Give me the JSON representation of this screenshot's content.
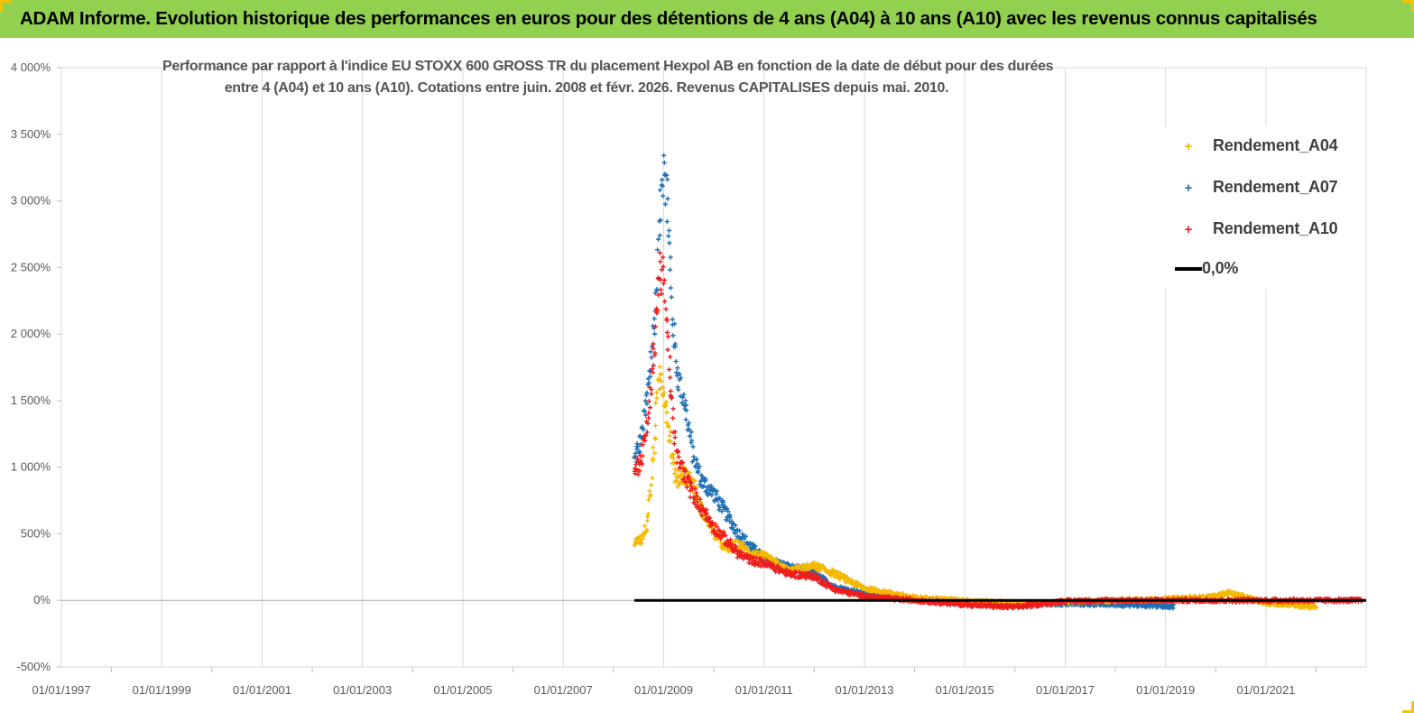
{
  "header": {
    "banner": "ADAM Informe. Evolution historique des performances en euros pour des détentions de 4 ans (A04) à 10 ans (A10) avec les revenus connus capitalisés"
  },
  "chart_data": {
    "type": "scatter",
    "title_lines": [
      "Performance par rapport à l'indice EU STOXX 600 GROSS TR  du placement Hexpol AB en fonction de la date de début pour des durées",
      "entre 4 (A04) et 10 ans (A10). Cotations entre juin. 2008 et févr. 2026. Revenus CAPITALISES depuis mai. 2010."
    ],
    "xlabel": "",
    "ylabel": "",
    "xlim": [
      "1997-01-01",
      "2022-12-31"
    ],
    "ylim": [
      -500,
      4000
    ],
    "y_ticks": [
      -500,
      0,
      500,
      1000,
      1500,
      2000,
      2500,
      3000,
      3500,
      4000
    ],
    "y_tick_labels": [
      "-500%",
      "0%",
      "500%",
      "1 000%",
      "1 500%",
      "2 000%",
      "2 500%",
      "3 000%",
      "3 500%",
      "4 000%"
    ],
    "x_tick_labels": [
      "01/01/1997",
      "01/01/1999",
      "01/01/2001",
      "01/01/2003",
      "01/01/2005",
      "01/01/2007",
      "01/01/2009",
      "01/01/2011",
      "01/01/2013",
      "01/01/2015",
      "01/01/2017",
      "01/01/2019",
      "01/01/2021"
    ],
    "x_tick_dates": [
      "1997-01-01",
      "1999-01-01",
      "2001-01-01",
      "2003-01-01",
      "2005-01-01",
      "2007-01-01",
      "2009-01-01",
      "2011-01-01",
      "2013-01-01",
      "2015-01-01",
      "2017-01-01",
      "2019-01-01",
      "2021-01-01"
    ],
    "grid": "vertical",
    "legend_position": "top-right",
    "series": [
      {
        "name": "Rendement_A04",
        "color": "#f5b800",
        "marker": "plus",
        "points": [
          [
            "2008-06-01",
            420
          ],
          [
            "2008-07-01",
            450
          ],
          [
            "2008-08-01",
            470
          ],
          [
            "2008-09-01",
            560
          ],
          [
            "2008-10-01",
            850
          ],
          [
            "2008-11-01",
            1300
          ],
          [
            "2008-12-01",
            1700
          ],
          [
            "2009-01-01",
            1600
          ],
          [
            "2009-02-01",
            1350
          ],
          [
            "2009-03-01",
            1100
          ],
          [
            "2009-04-01",
            900
          ],
          [
            "2009-06-01",
            950
          ],
          [
            "2009-08-01",
            880
          ],
          [
            "2009-10-01",
            680
          ],
          [
            "2010-01-01",
            520
          ],
          [
            "2010-04-01",
            380
          ],
          [
            "2010-07-01",
            420
          ],
          [
            "2010-10-01",
            350
          ],
          [
            "2011-01-01",
            330
          ],
          [
            "2011-07-01",
            220
          ],
          [
            "2012-01-01",
            260
          ],
          [
            "2012-06-01",
            200
          ],
          [
            "2013-01-01",
            90
          ],
          [
            "2014-01-01",
            20
          ],
          [
            "2015-01-01",
            0
          ],
          [
            "2016-01-01",
            -20
          ],
          [
            "2016-06-01",
            -25
          ],
          [
            "2017-01-01",
            -10
          ],
          [
            "2018-01-01",
            0
          ],
          [
            "2019-01-01",
            10
          ],
          [
            "2020-01-01",
            30
          ],
          [
            "2020-04-01",
            60
          ],
          [
            "2021-01-01",
            -20
          ],
          [
            "2021-06-01",
            -30
          ],
          [
            "2021-10-01",
            -40
          ],
          [
            "2022-01-01",
            -50
          ]
        ]
      },
      {
        "name": "Rendement_A07",
        "color": "#1f6fb5",
        "marker": "plus",
        "points": [
          [
            "2008-06-01",
            1050
          ],
          [
            "2008-07-01",
            1150
          ],
          [
            "2008-08-01",
            1250
          ],
          [
            "2008-09-01",
            1500
          ],
          [
            "2008-10-01",
            1800
          ],
          [
            "2008-11-01",
            2200
          ],
          [
            "2008-12-01",
            2800
          ],
          [
            "2009-01-01",
            3400
          ],
          [
            "2009-02-01",
            2900
          ],
          [
            "2009-03-01",
            2200
          ],
          [
            "2009-04-01",
            1800
          ],
          [
            "2009-05-01",
            1600
          ],
          [
            "2009-06-01",
            1500
          ],
          [
            "2009-08-01",
            1100
          ],
          [
            "2009-10-01",
            900
          ],
          [
            "2010-01-01",
            800
          ],
          [
            "2010-04-01",
            650
          ],
          [
            "2010-07-01",
            500
          ],
          [
            "2010-10-01",
            400
          ],
          [
            "2011-01-01",
            320
          ],
          [
            "2011-07-01",
            250
          ],
          [
            "2012-01-01",
            200
          ],
          [
            "2012-06-01",
            100
          ],
          [
            "2013-01-01",
            50
          ],
          [
            "2014-01-01",
            10
          ],
          [
            "2015-01-01",
            -20
          ],
          [
            "2016-01-01",
            -30
          ],
          [
            "2017-01-01",
            -25
          ],
          [
            "2018-01-01",
            -30
          ],
          [
            "2019-01-01",
            -40
          ],
          [
            "2019-03-01",
            -45
          ]
        ]
      },
      {
        "name": "Rendement_A10",
        "color": "#ee1c1c",
        "marker": "plus",
        "points": [
          [
            "2008-06-01",
            1000
          ],
          [
            "2008-07-01",
            1000
          ],
          [
            "2008-08-01",
            1100
          ],
          [
            "2008-09-01",
            1300
          ],
          [
            "2008-10-01",
            1600
          ],
          [
            "2008-11-01",
            2000
          ],
          [
            "2008-12-01",
            2500
          ],
          [
            "2009-01-01",
            2400
          ],
          [
            "2009-02-01",
            1900
          ],
          [
            "2009-03-01",
            1500
          ],
          [
            "2009-04-01",
            1100
          ],
          [
            "2009-06-01",
            950
          ],
          [
            "2009-08-01",
            800
          ],
          [
            "2009-10-01",
            700
          ],
          [
            "2010-01-01",
            550
          ],
          [
            "2010-04-01",
            450
          ],
          [
            "2010-07-01",
            350
          ],
          [
            "2010-10-01",
            300
          ],
          [
            "2011-01-01",
            280
          ],
          [
            "2011-07-01",
            200
          ],
          [
            "2012-01-01",
            180
          ],
          [
            "2012-06-01",
            80
          ],
          [
            "2013-01-01",
            30
          ],
          [
            "2014-01-01",
            0
          ],
          [
            "2015-01-01",
            -30
          ],
          [
            "2016-01-01",
            -50
          ],
          [
            "2017-01-01",
            -5
          ],
          [
            "2018-01-01",
            0
          ],
          [
            "2019-01-01",
            0
          ],
          [
            "2020-01-01",
            0
          ],
          [
            "2021-01-01",
            0
          ],
          [
            "2022-01-01",
            0
          ],
          [
            "2022-12-01",
            0
          ]
        ]
      },
      {
        "name": "0,0%",
        "color": "#000000",
        "marker": "line",
        "points": [
          [
            "2008-06-01",
            0
          ],
          [
            "2022-12-31",
            0
          ]
        ]
      }
    ]
  }
}
